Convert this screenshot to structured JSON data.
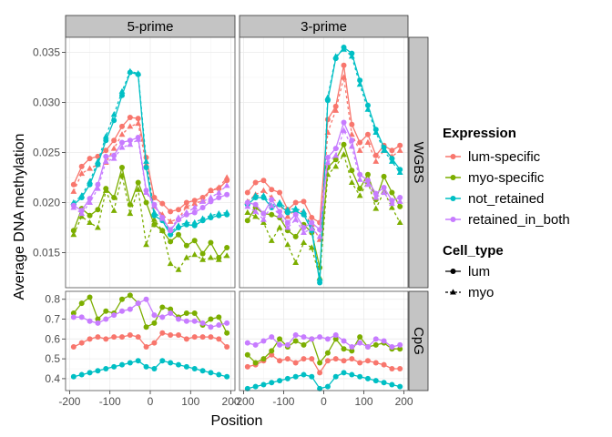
{
  "chart_data": {
    "type": "line",
    "xlabel": "Position",
    "ylabel": "Average DNA methylation",
    "x": [
      -190,
      -170,
      -150,
      -130,
      -110,
      -90,
      -70,
      -50,
      -30,
      -10,
      10,
      30,
      50,
      70,
      90,
      110,
      130,
      150,
      170,
      190
    ],
    "x_ticks": [
      -200,
      -100,
      0,
      100,
      200
    ],
    "x_tick_labels": [
      "-200",
      "-100",
      "0",
      "100",
      "200"
    ],
    "column_facets": [
      "5-prime",
      "3-prime"
    ],
    "row_facets": [
      {
        "label": "WGBS",
        "ylim": [
          0.0115,
          0.0365
        ],
        "ticks": [
          0.015,
          0.02,
          0.025,
          0.03,
          0.035
        ],
        "tick_labels": [
          "0.015",
          "0.020",
          "0.025",
          "0.030",
          "0.035"
        ]
      },
      {
        "label": "CpG",
        "ylim": [
          0.34,
          0.84
        ],
        "ticks": [
          0.4,
          0.5,
          0.6,
          0.7,
          0.8
        ],
        "tick_labels": [
          "0.4",
          "0.5",
          "0.6",
          "0.7",
          "0.8"
        ]
      }
    ],
    "legend": {
      "placement": "right",
      "color_title": "Expression",
      "color_entries": [
        {
          "name": "lum-specific",
          "color": "#F8766D"
        },
        {
          "name": "myo-specific",
          "color": "#7CAE00"
        },
        {
          "name": "not_retained",
          "color": "#00BFC4"
        },
        {
          "name": "retained_in_both",
          "color": "#C77CFF"
        }
      ],
      "shape_title": "Cell_type",
      "shape_entries": [
        {
          "name": "lum",
          "marker": "circle",
          "line": "solid"
        },
        {
          "name": "myo",
          "marker": "triangle",
          "line": "dashed"
        }
      ]
    },
    "grid": true,
    "panels": [
      {
        "row": 0,
        "col": 0,
        "series": [
          {
            "expression": 0,
            "cell": 0,
            "values": [
              0.0218,
              0.0236,
              0.0244,
              0.0246,
              0.0252,
              0.0262,
              0.0276,
              0.0285,
              0.0284,
              0.0245,
              0.0205,
              0.0199,
              0.0191,
              0.0193,
              0.02,
              0.0202,
              0.0205,
              0.0212,
              0.0214,
              0.0222
            ]
          },
          {
            "expression": 0,
            "cell": 1,
            "values": [
              0.0211,
              0.0229,
              0.0234,
              0.0238,
              0.024,
              0.0254,
              0.0268,
              0.0276,
              0.0279,
              0.0238,
              0.0196,
              0.0188,
              0.0181,
              0.0184,
              0.0196,
              0.0199,
              0.0202,
              0.0212,
              0.0215,
              0.0225
            ]
          },
          {
            "expression": 1,
            "cell": 0,
            "values": [
              0.0172,
              0.0194,
              0.0187,
              0.0193,
              0.0214,
              0.0205,
              0.0235,
              0.0198,
              0.022,
              0.02,
              0.0178,
              0.0172,
              0.0161,
              0.0168,
              0.0157,
              0.0162,
              0.0149,
              0.016,
              0.0145,
              0.0155
            ]
          },
          {
            "expression": 1,
            "cell": 1,
            "values": [
              0.0168,
              0.0186,
              0.018,
              0.0175,
              0.0212,
              0.0192,
              0.0227,
              0.0189,
              0.0213,
              0.0158,
              0.0183,
              0.0172,
              0.0139,
              0.0133,
              0.0145,
              0.0148,
              0.0143,
              0.0145,
              0.0143,
              0.0147
            ]
          },
          {
            "expression": 2,
            "cell": 0,
            "values": [
              0.0198,
              0.0205,
              0.0218,
              0.0238,
              0.0262,
              0.0282,
              0.0307,
              0.033,
              0.0328,
              0.0235,
              0.0187,
              0.0182,
              0.0168,
              0.0175,
              0.0178,
              0.0177,
              0.0182,
              0.0185,
              0.0187,
              0.0188
            ]
          },
          {
            "expression": 2,
            "cell": 1,
            "values": [
              0.02,
              0.0207,
              0.0221,
              0.0241,
              0.0266,
              0.0288,
              0.0311,
              0.0331,
              0.0329,
              0.0241,
              0.019,
              0.0184,
              0.017,
              0.0177,
              0.018,
              0.018,
              0.0184,
              0.0187,
              0.0189,
              0.019
            ]
          },
          {
            "expression": 3,
            "cell": 0,
            "values": [
              0.0197,
              0.0192,
              0.0204,
              0.0218,
              0.0246,
              0.0247,
              0.026,
              0.0262,
              0.0265,
              0.0212,
              0.0198,
              0.0185,
              0.0172,
              0.0183,
              0.0188,
              0.019,
              0.0195,
              0.0201,
              0.0205,
              0.0208
            ]
          },
          {
            "expression": 3,
            "cell": 1,
            "values": [
              0.0195,
              0.0189,
              0.02,
              0.0214,
              0.0241,
              0.0244,
              0.0255,
              0.0258,
              0.0263,
              0.021,
              0.0197,
              0.0184,
              0.0173,
              0.0185,
              0.019,
              0.0195,
              0.0201,
              0.0205,
              0.021,
              0.0217
            ]
          }
        ]
      },
      {
        "row": 0,
        "col": 1,
        "series": [
          {
            "expression": 0,
            "cell": 0,
            "values": [
              0.021,
              0.022,
              0.0222,
              0.0213,
              0.021,
              0.0193,
              0.02,
              0.0201,
              0.0185,
              0.018,
              0.0283,
              0.0296,
              0.0337,
              0.0278,
              0.026,
              0.0268,
              0.0247,
              0.0257,
              0.0252,
              0.0257
            ]
          },
          {
            "expression": 0,
            "cell": 1,
            "values": [
              0.0201,
              0.0208,
              0.0212,
              0.0205,
              0.0198,
              0.0186,
              0.0193,
              0.019,
              0.0178,
              0.0163,
              0.027,
              0.0292,
              0.0325,
              0.0268,
              0.0252,
              0.026,
              0.0241,
              0.0252,
              0.0246,
              0.0252
            ]
          },
          {
            "expression": 1,
            "cell": 0,
            "values": [
              0.0182,
              0.0195,
              0.0189,
              0.0188,
              0.0185,
              0.0172,
              0.0166,
              0.0178,
              0.017,
              0.0135,
              0.0235,
              0.0243,
              0.0258,
              0.0232,
              0.0214,
              0.0228,
              0.0203,
              0.0226,
              0.021,
              0.0196
            ]
          },
          {
            "expression": 1,
            "cell": 1,
            "values": [
              0.019,
              0.0186,
              0.018,
              0.0162,
              0.0175,
              0.0158,
              0.014,
              0.016,
              0.0155,
              0.0125,
              0.0228,
              0.0236,
              0.0248,
              0.022,
              0.0207,
              0.0221,
              0.0194,
              0.0211,
              0.0195,
              0.018
            ]
          },
          {
            "expression": 2,
            "cell": 0,
            "values": [
              0.0198,
              0.0205,
              0.0205,
              0.0195,
              0.0198,
              0.019,
              0.0191,
              0.0188,
              0.0172,
              0.012,
              0.0302,
              0.0344,
              0.0355,
              0.0349,
              0.0322,
              0.0297,
              0.0273,
              0.0255,
              0.0244,
              0.0233
            ]
          },
          {
            "expression": 2,
            "cell": 1,
            "values": [
              0.02,
              0.0207,
              0.0207,
              0.0197,
              0.02,
              0.0193,
              0.0194,
              0.0191,
              0.0175,
              0.0124,
              0.0305,
              0.0346,
              0.0353,
              0.0346,
              0.0318,
              0.0293,
              0.027,
              0.0252,
              0.0241,
              0.023
            ]
          },
          {
            "expression": 3,
            "cell": 0,
            "values": [
              0.02,
              0.0198,
              0.0189,
              0.0203,
              0.0191,
              0.018,
              0.0188,
              0.0175,
              0.018,
              0.0173,
              0.0245,
              0.0254,
              0.028,
              0.0262,
              0.0228,
              0.0222,
              0.0209,
              0.0215,
              0.0202,
              0.0205
            ]
          },
          {
            "expression": 3,
            "cell": 1,
            "values": [
              0.0196,
              0.0191,
              0.0183,
              0.0197,
              0.0187,
              0.0175,
              0.0183,
              0.017,
              0.0174,
              0.0166,
              0.024,
              0.0247,
              0.0272,
              0.0256,
              0.0223,
              0.0218,
              0.0205,
              0.021,
              0.0199,
              0.0201
            ]
          }
        ]
      },
      {
        "row": 1,
        "col": 0,
        "series": [
          {
            "expression": 0,
            "cell": 0,
            "values": [
              0.56,
              0.58,
              0.6,
              0.61,
              0.6,
              0.61,
              0.61,
              0.62,
              0.61,
              0.56,
              0.58,
              0.63,
              0.62,
              0.62,
              0.6,
              0.61,
              0.61,
              0.61,
              0.6,
              0.56
            ]
          },
          {
            "expression": 1,
            "cell": 0,
            "values": [
              0.73,
              0.78,
              0.81,
              0.7,
              0.74,
              0.73,
              0.8,
              0.82,
              0.78,
              0.66,
              0.68,
              0.76,
              0.75,
              0.71,
              0.73,
              0.73,
              0.67,
              0.7,
              0.71,
              0.63
            ]
          },
          {
            "expression": 2,
            "cell": 0,
            "values": [
              0.41,
              0.42,
              0.43,
              0.44,
              0.45,
              0.46,
              0.47,
              0.48,
              0.49,
              0.46,
              0.45,
              0.49,
              0.48,
              0.47,
              0.46,
              0.45,
              0.44,
              0.43,
              0.42,
              0.41
            ]
          },
          {
            "expression": 3,
            "cell": 0,
            "values": [
              0.71,
              0.71,
              0.69,
              0.68,
              0.7,
              0.72,
              0.74,
              0.75,
              0.78,
              0.8,
              0.72,
              0.71,
              0.73,
              0.7,
              0.69,
              0.69,
              0.68,
              0.66,
              0.67,
              0.68
            ]
          }
        ]
      },
      {
        "row": 1,
        "col": 1,
        "series": [
          {
            "expression": 0,
            "cell": 0,
            "values": [
              0.46,
              0.47,
              0.49,
              0.52,
              0.49,
              0.5,
              0.48,
              0.5,
              0.5,
              0.43,
              0.49,
              0.5,
              0.49,
              0.5,
              0.48,
              0.49,
              0.48,
              0.47,
              0.45,
              0.45
            ]
          },
          {
            "expression": 1,
            "cell": 0,
            "values": [
              0.52,
              0.48,
              0.5,
              0.54,
              0.6,
              0.56,
              0.59,
              0.57,
              0.6,
              0.48,
              0.53,
              0.6,
              0.55,
              0.54,
              0.61,
              0.56,
              0.57,
              0.58,
              0.55,
              0.55
            ]
          },
          {
            "expression": 2,
            "cell": 0,
            "values": [
              0.35,
              0.36,
              0.37,
              0.38,
              0.39,
              0.4,
              0.41,
              0.42,
              0.41,
              0.35,
              0.36,
              0.41,
              0.43,
              0.42,
              0.41,
              0.4,
              0.39,
              0.38,
              0.37,
              0.36
            ]
          },
          {
            "expression": 3,
            "cell": 0,
            "values": [
              0.58,
              0.57,
              0.59,
              0.61,
              0.57,
              0.57,
              0.62,
              0.61,
              0.6,
              0.61,
              0.6,
              0.62,
              0.59,
              0.56,
              0.58,
              0.56,
              0.6,
              0.59,
              0.56,
              0.57
            ]
          }
        ]
      }
    ]
  }
}
